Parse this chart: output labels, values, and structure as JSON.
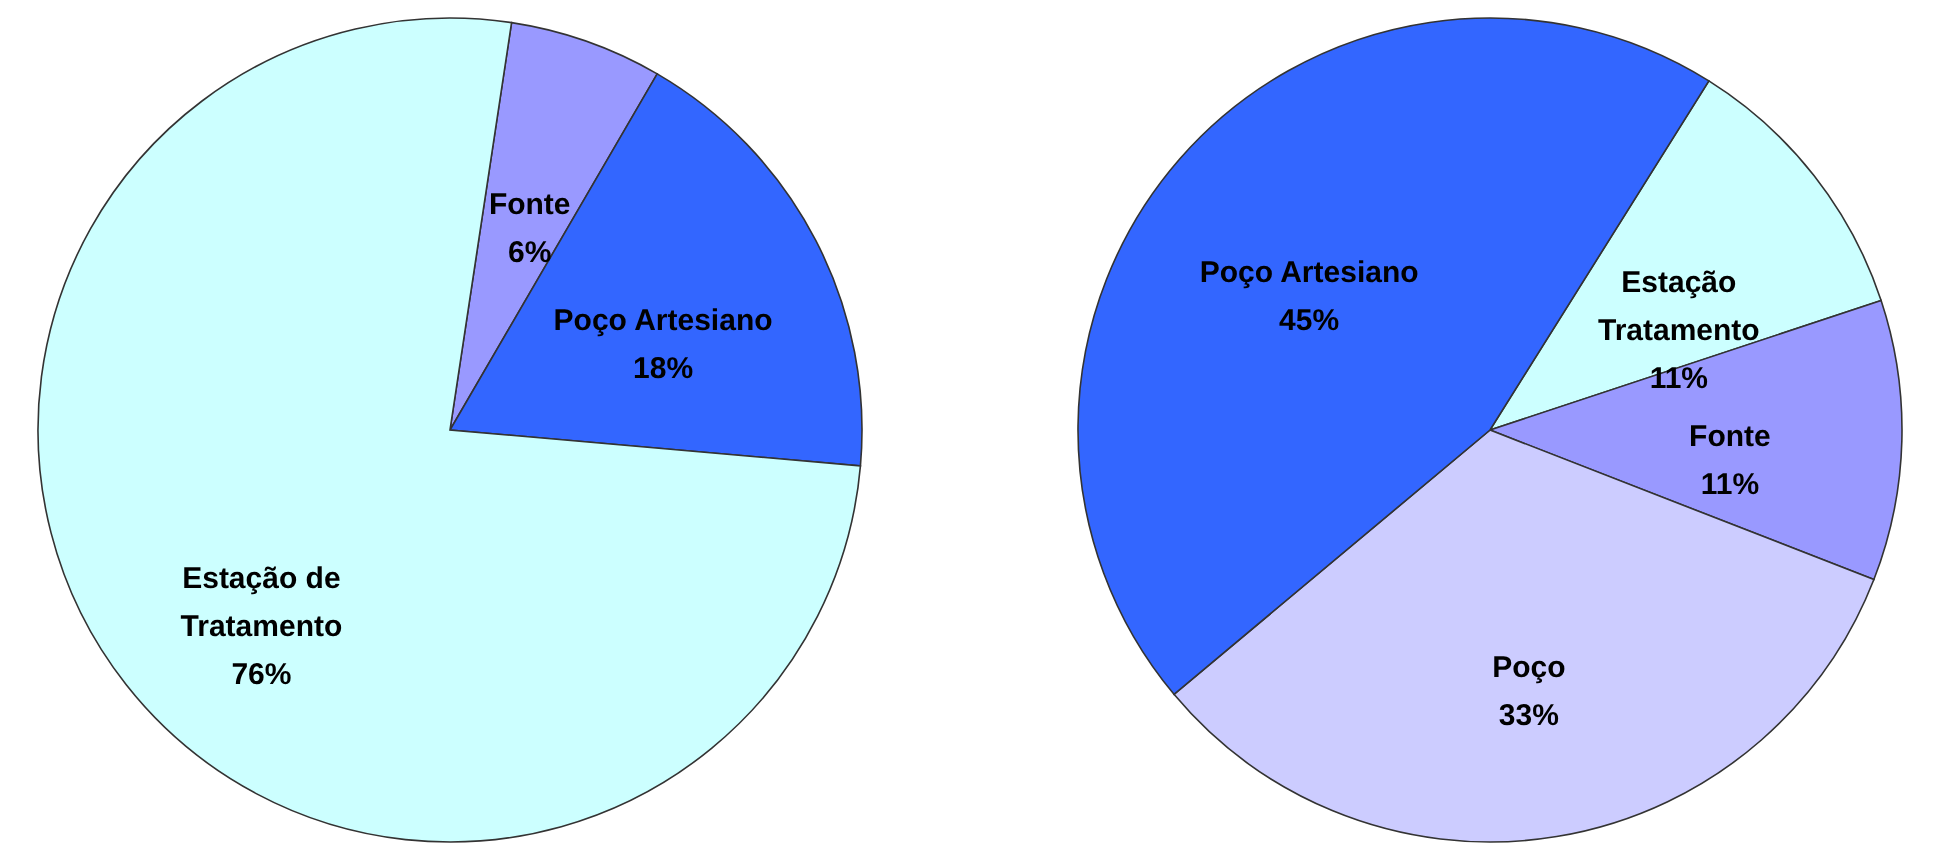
{
  "chart_data": [
    {
      "type": "pie",
      "categories": [
        "Fonte",
        "Poço Artesiano",
        "Estação de Tratamento"
      ],
      "values": [
        6,
        18,
        76
      ],
      "value_labels": [
        "6%",
        "18%",
        "76%"
      ],
      "colors": [
        "#9999ff",
        "#3366ff",
        "#ccffff"
      ]
    },
    {
      "type": "pie",
      "categories": [
        "Estação Tratamento",
        "Fonte",
        "Poço",
        "Poço Artesiano"
      ],
      "values": [
        11,
        11,
        33,
        45
      ],
      "value_labels": [
        "11%",
        "11%",
        "33%",
        "45%"
      ],
      "colors": [
        "#ccffff",
        "#9999ff",
        "#ccccff",
        "#3366ff"
      ]
    }
  ]
}
